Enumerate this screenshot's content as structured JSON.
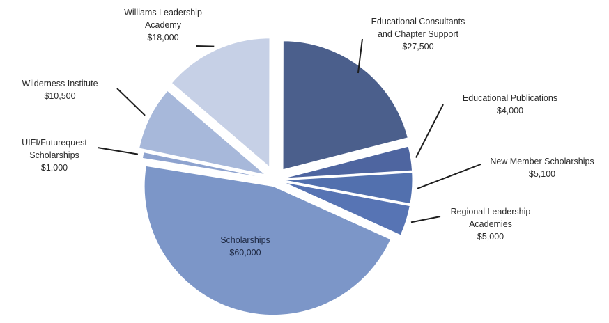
{
  "chart_data": {
    "type": "pie",
    "slices": [
      {
        "label": [
          "Educational Consultants",
          "and Chapter Support"
        ],
        "value": 27500,
        "value_label": "$27,500",
        "color": "#4b5f8c"
      },
      {
        "label": [
          "Educational Publications"
        ],
        "value": 4000,
        "value_label": "$4,000",
        "color": "#4e65a0"
      },
      {
        "label": [
          "New Member Scholarships"
        ],
        "value": 5100,
        "value_label": "$5,100",
        "color": "#5270ae"
      },
      {
        "label": [
          "Regional Leadership",
          "Academies"
        ],
        "value": 5000,
        "value_label": "$5,000",
        "color": "#5774b4"
      },
      {
        "label": [
          "Scholarships"
        ],
        "value": 60000,
        "value_label": "$60,000",
        "color": "#7c96c8"
      },
      {
        "label": [
          "UIFI/Futurequest",
          "Scholarships"
        ],
        "value": 1000,
        "value_label": "$1,000",
        "color": "#8ea3cf"
      },
      {
        "label": [
          "Wilderness Institute"
        ],
        "value": 10500,
        "value_label": "$10,500",
        "color": "#a7b8da"
      },
      {
        "label": [
          "Williams Leadership",
          "Academy"
        ],
        "value": 18000,
        "value_label": "$18,000",
        "color": "#c6d0e6"
      }
    ]
  }
}
